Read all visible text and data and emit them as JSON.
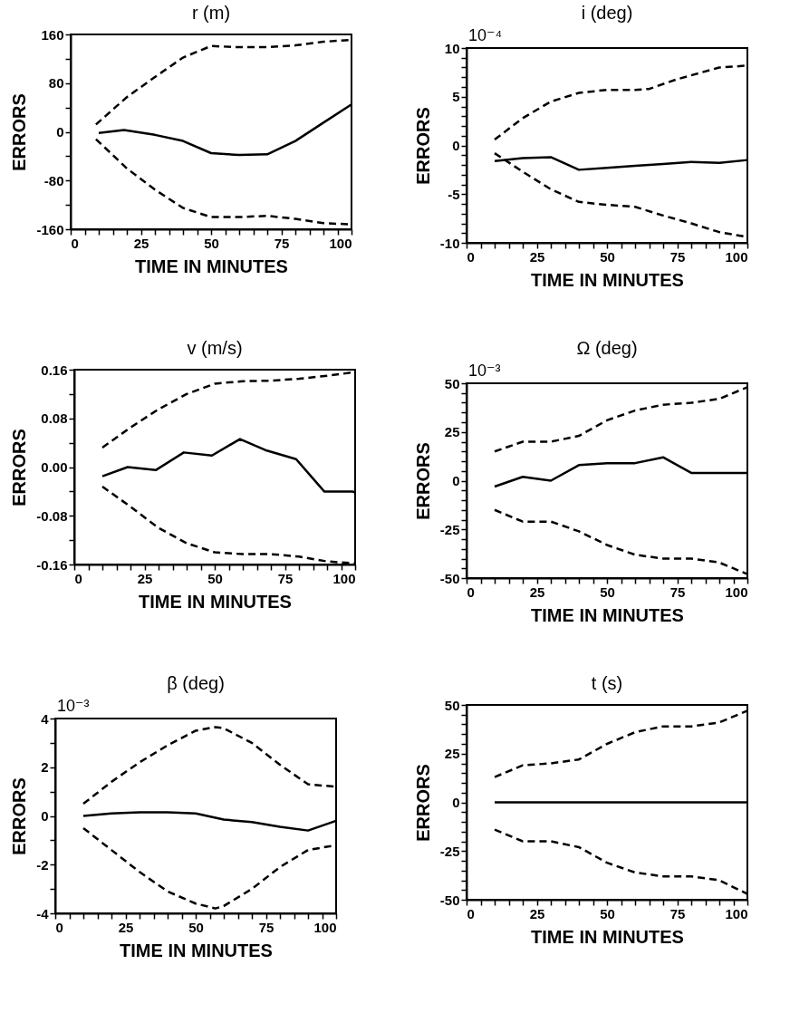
{
  "chart_data": [
    {
      "type": "line",
      "title": "r (m)",
      "xlabel": "TIME IN MINUTES",
      "ylabel": "ERRORS",
      "xlim": [
        0,
        100
      ],
      "ylim": [
        -160,
        160
      ],
      "xticks": [
        0,
        {
          "value": 5,
          "label": null
        },
        {
          "value": 10,
          "label": null
        },
        {
          "value": 15,
          "label": null
        },
        {
          "value": 20,
          "label": null
        },
        25,
        {
          "value": 30,
          "label": null
        },
        {
          "value": 35,
          "label": null
        },
        {
          "value": 40,
          "label": null
        },
        {
          "value": 45,
          "label": null
        },
        50,
        {
          "value": 55,
          "label": null
        },
        {
          "value": 60,
          "label": null
        },
        {
          "value": 65,
          "label": null
        },
        {
          "value": 70,
          "label": null
        },
        75,
        {
          "value": 80,
          "label": null
        },
        {
          "value": 85,
          "label": null
        },
        {
          "value": 90,
          "label": null
        },
        {
          "value": 95,
          "label": null
        },
        100
      ],
      "yticks": [
        -160,
        {
          "value": -120,
          "label": null
        },
        -80,
        {
          "value": -40,
          "label": null
        },
        0,
        {
          "value": 40,
          "label": null
        },
        80,
        {
          "value": 120,
          "label": null
        },
        160
      ],
      "series": [
        {
          "color": "#000000",
          "line_style": "solid",
          "x": [
            10,
            19,
            30,
            40,
            50,
            60,
            70,
            80,
            90,
            100
          ],
          "values": [
            -2,
            3,
            -5,
            -15,
            -35,
            -38,
            -37,
            -15,
            15,
            45
          ]
        },
        {
          "color": "#000000",
          "line_style": "dashed",
          "x": [
            9,
            20,
            30,
            40,
            50,
            60,
            70,
            80,
            90,
            100
          ],
          "values": [
            12,
            57,
            90,
            122,
            141,
            139,
            139,
            142,
            148,
            151
          ]
        },
        {
          "color": "#000000",
          "line_style": "dashed",
          "x": [
            9,
            20,
            30,
            40,
            50,
            60,
            70,
            80,
            90,
            100
          ],
          "values": [
            -12,
            -60,
            -95,
            -125,
            -140,
            -140,
            -138,
            -143,
            -150,
            -152
          ]
        }
      ]
    },
    {
      "type": "line",
      "title": "i (deg)",
      "annotations": [
        "10⁻⁴"
      ],
      "xlabel": "TIME IN MINUTES",
      "ylabel": "ERRORS",
      "xlim": [
        0,
        100
      ],
      "ylim": [
        -10,
        10
      ],
      "xticks": [
        0,
        {
          "value": 5,
          "label": null
        },
        {
          "value": 10,
          "label": null
        },
        {
          "value": 15,
          "label": null
        },
        {
          "value": 20,
          "label": null
        },
        25,
        {
          "value": 30,
          "label": null
        },
        {
          "value": 35,
          "label": null
        },
        {
          "value": 40,
          "label": null
        },
        {
          "value": 45,
          "label": null
        },
        50,
        {
          "value": 55,
          "label": null
        },
        {
          "value": 60,
          "label": null
        },
        {
          "value": 65,
          "label": null
        },
        {
          "value": 70,
          "label": null
        },
        75,
        {
          "value": 80,
          "label": null
        },
        {
          "value": 85,
          "label": null
        },
        {
          "value": 90,
          "label": null
        },
        {
          "value": 95,
          "label": null
        },
        100
      ],
      "yticks": [
        -10,
        {
          "value": -9,
          "label": null
        },
        {
          "value": -8,
          "label": null
        },
        {
          "value": -7,
          "label": null
        },
        {
          "value": -6,
          "label": null
        },
        -5,
        {
          "value": -4,
          "label": null
        },
        {
          "value": -3,
          "label": null
        },
        {
          "value": -2,
          "label": null
        },
        {
          "value": -1,
          "label": null
        },
        0,
        {
          "value": 1,
          "label": null
        },
        {
          "value": 2,
          "label": null
        },
        {
          "value": 3,
          "label": null
        },
        {
          "value": 4,
          "label": null
        },
        5,
        {
          "value": 6,
          "label": null
        },
        {
          "value": 7,
          "label": null
        },
        {
          "value": 8,
          "label": null
        },
        {
          "value": 9,
          "label": null
        },
        10
      ],
      "series": [
        {
          "color": "#000000",
          "line_style": "solid",
          "x": [
            10,
            20,
            30,
            40,
            50,
            60,
            70,
            80,
            90,
            100
          ],
          "values": [
            -1.6,
            -1.3,
            -1.2,
            -2.5,
            -2.3,
            -2.1,
            -1.9,
            -1.7,
            -1.8,
            -1.5
          ]
        },
        {
          "color": "#000000",
          "line_style": "dashed",
          "x": [
            10,
            20,
            30,
            40,
            50,
            60,
            65,
            75,
            90,
            100
          ],
          "values": [
            0.6,
            2.8,
            4.5,
            5.4,
            5.7,
            5.7,
            5.8,
            6.8,
            8.0,
            8.2
          ]
        },
        {
          "color": "#000000",
          "line_style": "dashed",
          "x": [
            10,
            20,
            30,
            40,
            50,
            60,
            70,
            80,
            90,
            100
          ],
          "values": [
            -0.8,
            -2.7,
            -4.5,
            -5.8,
            -6.1,
            -6.3,
            -7.2,
            -8.0,
            -8.9,
            -9.4
          ]
        }
      ]
    },
    {
      "type": "line",
      "title": "v (m/s)",
      "xlabel": "TIME IN MINUTES",
      "ylabel": "ERRORS",
      "xlim": [
        0,
        100
      ],
      "ylim": [
        -0.16,
        0.16
      ],
      "xticks": [
        0,
        {
          "value": 5,
          "label": null
        },
        {
          "value": 10,
          "label": null
        },
        {
          "value": 15,
          "label": null
        },
        {
          "value": 20,
          "label": null
        },
        25,
        {
          "value": 30,
          "label": null
        },
        {
          "value": 35,
          "label": null
        },
        {
          "value": 40,
          "label": null
        },
        {
          "value": 45,
          "label": null
        },
        50,
        {
          "value": 55,
          "label": null
        },
        {
          "value": 60,
          "label": null
        },
        {
          "value": 65,
          "label": null
        },
        {
          "value": 70,
          "label": null
        },
        75,
        {
          "value": 80,
          "label": null
        },
        {
          "value": 85,
          "label": null
        },
        {
          "value": 90,
          "label": null
        },
        {
          "value": 95,
          "label": null
        },
        100
      ],
      "yticks": [
        {
          "value": -0.16,
          "label": "-0.16"
        },
        {
          "value": -0.12,
          "label": null
        },
        {
          "value": -0.08,
          "label": "-0.08"
        },
        {
          "value": -0.04,
          "label": null
        },
        {
          "value": 0,
          "label": "0.00"
        },
        {
          "value": 0.04,
          "label": null
        },
        {
          "value": 0.08,
          "label": "0.08"
        },
        {
          "value": 0.12,
          "label": null
        },
        {
          "value": 0.16,
          "label": "0.16"
        }
      ],
      "series": [
        {
          "color": "#000000",
          "line_style": "solid",
          "x": [
            10,
            19,
            29,
            39,
            49,
            59,
            68,
            79,
            89,
            99,
            100
          ],
          "values": [
            -0.015,
            0.0,
            -0.005,
            0.024,
            0.019,
            0.046,
            0.028,
            0.013,
            -0.04,
            -0.04,
            -0.042
          ]
        },
        {
          "color": "#000000",
          "line_style": "dashed",
          "x": [
            10,
            20,
            30,
            40,
            50,
            60,
            70,
            80,
            90,
            100
          ],
          "values": [
            0.032,
            0.065,
            0.095,
            0.12,
            0.137,
            0.141,
            0.142,
            0.145,
            0.15,
            0.156
          ]
        },
        {
          "color": "#000000",
          "line_style": "dashed",
          "x": [
            10,
            20,
            30,
            40,
            50,
            60,
            70,
            80,
            90,
            100
          ],
          "values": [
            -0.032,
            -0.065,
            -0.1,
            -0.125,
            -0.14,
            -0.143,
            -0.143,
            -0.147,
            -0.155,
            -0.158
          ]
        }
      ]
    },
    {
      "type": "line",
      "title": "Ω (deg)",
      "annotations": [
        "10⁻³"
      ],
      "xlabel": "TIME IN MINUTES",
      "ylabel": "ERRORS",
      "xlim": [
        0,
        100
      ],
      "ylim": [
        -50,
        50
      ],
      "xticks": [
        0,
        {
          "value": 5,
          "label": null
        },
        {
          "value": 10,
          "label": null
        },
        {
          "value": 15,
          "label": null
        },
        {
          "value": 20,
          "label": null
        },
        25,
        {
          "value": 30,
          "label": null
        },
        {
          "value": 35,
          "label": null
        },
        {
          "value": 40,
          "label": null
        },
        {
          "value": 45,
          "label": null
        },
        50,
        {
          "value": 55,
          "label": null
        },
        {
          "value": 60,
          "label": null
        },
        {
          "value": 65,
          "label": null
        },
        {
          "value": 70,
          "label": null
        },
        75,
        {
          "value": 80,
          "label": null
        },
        {
          "value": 85,
          "label": null
        },
        {
          "value": 90,
          "label": null
        },
        {
          "value": 95,
          "label": null
        },
        100
      ],
      "yticks": [
        -50,
        {
          "value": -45,
          "label": null
        },
        {
          "value": -40,
          "label": null
        },
        {
          "value": -35,
          "label": null
        },
        {
          "value": -30,
          "label": null
        },
        -25,
        {
          "value": -20,
          "label": null
        },
        {
          "value": -15,
          "label": null
        },
        {
          "value": -10,
          "label": null
        },
        {
          "value": -5,
          "label": null
        },
        0,
        {
          "value": 5,
          "label": null
        },
        {
          "value": 10,
          "label": null
        },
        {
          "value": 15,
          "label": null
        },
        {
          "value": 20,
          "label": null
        },
        25,
        {
          "value": 30,
          "label": null
        },
        {
          "value": 35,
          "label": null
        },
        {
          "value": 40,
          "label": null
        },
        {
          "value": 45,
          "label": null
        },
        50
      ],
      "series": [
        {
          "color": "#000000",
          "line_style": "solid",
          "x": [
            10,
            20,
            30,
            40,
            50,
            60,
            70,
            80,
            90,
            100
          ],
          "values": [
            -3,
            2,
            0,
            8,
            9,
            9,
            12,
            4,
            4,
            4
          ]
        },
        {
          "color": "#000000",
          "line_style": "dashed",
          "x": [
            10,
            20,
            30,
            40,
            50,
            60,
            70,
            80,
            90,
            100
          ],
          "values": [
            15,
            20,
            20,
            23,
            31,
            36,
            39,
            40,
            42,
            48
          ]
        },
        {
          "color": "#000000",
          "line_style": "dashed",
          "x": [
            10,
            20,
            30,
            40,
            50,
            60,
            70,
            80,
            90,
            100
          ],
          "values": [
            -15,
            -21,
            -21,
            -26,
            -33,
            -38,
            -40,
            -40,
            -42,
            -48
          ]
        }
      ]
    },
    {
      "type": "line",
      "title": "β (deg)",
      "annotations": [
        "10⁻³"
      ],
      "xlabel": "TIME IN MINUTES",
      "ylabel": "ERRORS",
      "xlim": [
        0,
        100
      ],
      "ylim": [
        -4,
        4
      ],
      "xticks": [
        0,
        {
          "value": 5,
          "label": null
        },
        {
          "value": 10,
          "label": null
        },
        {
          "value": 15,
          "label": null
        },
        {
          "value": 20,
          "label": null
        },
        25,
        {
          "value": 30,
          "label": null
        },
        {
          "value": 35,
          "label": null
        },
        {
          "value": 40,
          "label": null
        },
        {
          "value": 45,
          "label": null
        },
        50,
        {
          "value": 55,
          "label": null
        },
        {
          "value": 60,
          "label": null
        },
        {
          "value": 65,
          "label": null
        },
        {
          "value": 70,
          "label": null
        },
        75,
        {
          "value": 80,
          "label": null
        },
        {
          "value": 85,
          "label": null
        },
        {
          "value": 90,
          "label": null
        },
        {
          "value": 95,
          "label": null
        },
        100
      ],
      "yticks": [
        -4,
        {
          "value": -3,
          "label": null
        },
        -2,
        {
          "value": -1,
          "label": null
        },
        0,
        {
          "value": 1,
          "label": null
        },
        2,
        {
          "value": 3,
          "label": null
        },
        4
      ],
      "series": [
        {
          "color": "#000000",
          "line_style": "solid",
          "x": [
            10,
            20,
            30,
            40,
            50,
            60,
            70,
            80,
            90,
            100
          ],
          "values": [
            0,
            0.1,
            0.15,
            0.15,
            0.1,
            -0.15,
            -0.25,
            -0.45,
            -0.6,
            -0.2
          ]
        },
        {
          "color": "#000000",
          "line_style": "dashed",
          "x": [
            10,
            20,
            30,
            40,
            50,
            57,
            60,
            70,
            80,
            90,
            100
          ],
          "values": [
            0.5,
            1.4,
            2.2,
            2.9,
            3.5,
            3.65,
            3.6,
            3.0,
            2.1,
            1.3,
            1.2
          ]
        },
        {
          "color": "#000000",
          "line_style": "dashed",
          "x": [
            10,
            20,
            30,
            40,
            50,
            57,
            60,
            70,
            80,
            90,
            100
          ],
          "values": [
            -0.5,
            -1.4,
            -2.3,
            -3.1,
            -3.6,
            -3.8,
            -3.7,
            -3.0,
            -2.1,
            -1.4,
            -1.2
          ]
        }
      ]
    },
    {
      "type": "line",
      "title": "t (s)",
      "xlabel": "TIME IN MINUTES",
      "ylabel": "ERRORS",
      "xlim": [
        0,
        100
      ],
      "ylim": [
        -50,
        50
      ],
      "xticks": [
        0,
        {
          "value": 5,
          "label": null
        },
        {
          "value": 10,
          "label": null
        },
        {
          "value": 15,
          "label": null
        },
        {
          "value": 20,
          "label": null
        },
        25,
        {
          "value": 30,
          "label": null
        },
        {
          "value": 35,
          "label": null
        },
        {
          "value": 40,
          "label": null
        },
        {
          "value": 45,
          "label": null
        },
        50,
        {
          "value": 55,
          "label": null
        },
        {
          "value": 60,
          "label": null
        },
        {
          "value": 65,
          "label": null
        },
        {
          "value": 70,
          "label": null
        },
        75,
        {
          "value": 80,
          "label": null
        },
        {
          "value": 85,
          "label": null
        },
        {
          "value": 90,
          "label": null
        },
        {
          "value": 95,
          "label": null
        },
        100
      ],
      "yticks": [
        -50,
        {
          "value": -45,
          "label": null
        },
        {
          "value": -40,
          "label": null
        },
        {
          "value": -35,
          "label": null
        },
        {
          "value": -30,
          "label": null
        },
        -25,
        {
          "value": -20,
          "label": null
        },
        {
          "value": -15,
          "label": null
        },
        {
          "value": -10,
          "label": null
        },
        {
          "value": -5,
          "label": null
        },
        0,
        {
          "value": 5,
          "label": null
        },
        {
          "value": 10,
          "label": null
        },
        {
          "value": 15,
          "label": null
        },
        {
          "value": 20,
          "label": null
        },
        25,
        {
          "value": 30,
          "label": null
        },
        {
          "value": 35,
          "label": null
        },
        {
          "value": 40,
          "label": null
        },
        {
          "value": 45,
          "label": null
        },
        50
      ],
      "series": [
        {
          "color": "#000000",
          "line_style": "solid",
          "x": [
            10,
            100
          ],
          "values": [
            0,
            0
          ]
        },
        {
          "color": "#000000",
          "line_style": "dashed",
          "x": [
            10,
            20,
            30,
            40,
            50,
            60,
            70,
            80,
            90,
            100
          ],
          "values": [
            13,
            19,
            20,
            22,
            30,
            36,
            39,
            39,
            41,
            47
          ]
        },
        {
          "color": "#000000",
          "line_style": "dashed",
          "x": [
            10,
            20,
            30,
            40,
            50,
            60,
            70,
            80,
            90,
            100
          ],
          "values": [
            -14,
            -20,
            -20,
            -23,
            -31,
            -36,
            -38,
            -38,
            -40,
            -47
          ]
        }
      ]
    }
  ]
}
